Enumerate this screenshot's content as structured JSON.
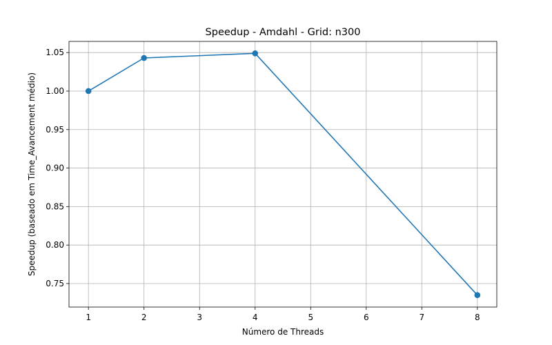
{
  "chart_data": {
    "type": "line",
    "title": "Speedup - Amdahl - Grid: n300",
    "xlabel": "Número de Threads",
    "ylabel": "Speedup (baseado em Time_Avancement médio)",
    "x": [
      1,
      2,
      4,
      8
    ],
    "series": [
      {
        "values": [
          1.0,
          1.043,
          1.049,
          0.735
        ],
        "color": "#1f77b4",
        "marker": "circle"
      }
    ],
    "xlim": [
      0.65,
      8.35
    ],
    "ylim": [
      0.7195,
      1.0645
    ],
    "xticks": [
      1,
      2,
      3,
      4,
      5,
      6,
      7,
      8
    ],
    "xtick_labels": [
      "1",
      "2",
      "3",
      "4",
      "5",
      "6",
      "7",
      "8"
    ],
    "yticks": [
      0.75,
      0.8,
      0.85,
      0.9,
      0.95,
      1.0,
      1.05
    ],
    "ytick_labels": [
      "0.75",
      "0.80",
      "0.85",
      "0.90",
      "0.95",
      "1.00",
      "1.05"
    ],
    "grid": true,
    "legend": "none"
  }
}
